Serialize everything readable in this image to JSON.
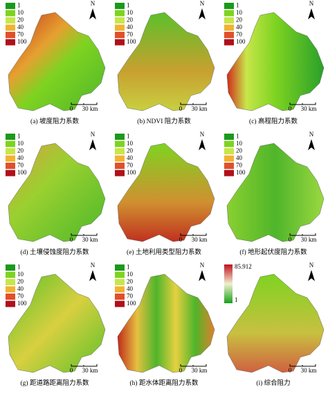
{
  "panels": [
    {
      "caption": "(a) 坡度阻力系数",
      "legend": [
        {
          "label": "1",
          "color": "#1a9a1a"
        },
        {
          "label": "10",
          "color": "#7ed321"
        },
        {
          "label": "20",
          "color": "#c8e64a"
        },
        {
          "label": "40",
          "color": "#f2b233"
        },
        {
          "label": "70",
          "color": "#e0502a"
        },
        {
          "label": "100",
          "color": "#b0101a"
        }
      ],
      "north": "N",
      "scale_start": "0",
      "scale_end": "30 km"
    },
    {
      "caption": "(b) NDVI 阻力系数",
      "legend": [
        {
          "label": "1",
          "color": "#1a9a1a"
        },
        {
          "label": "10",
          "color": "#7ed321"
        },
        {
          "label": "20",
          "color": "#c8e64a"
        },
        {
          "label": "40",
          "color": "#f2b233"
        },
        {
          "label": "70",
          "color": "#e0502a"
        },
        {
          "label": "100",
          "color": "#b0101a"
        }
      ],
      "north": "N",
      "scale_start": "0",
      "scale_end": "30 km"
    },
    {
      "caption": "(c) 高程阻力系数",
      "legend": [
        {
          "label": "1",
          "color": "#1a9a1a"
        },
        {
          "label": "10",
          "color": "#7ed321"
        },
        {
          "label": "20",
          "color": "#c8e64a"
        },
        {
          "label": "40",
          "color": "#f2b233"
        },
        {
          "label": "70",
          "color": "#e0502a"
        },
        {
          "label": "100",
          "color": "#b0101a"
        }
      ],
      "north": "N",
      "scale_start": "0",
      "scale_end": "30 km"
    },
    {
      "caption": "(d) 土壤侵蚀度阻力系数",
      "legend": [
        {
          "label": "1",
          "color": "#1a9a1a"
        },
        {
          "label": "10",
          "color": "#7ed321"
        },
        {
          "label": "20",
          "color": "#c8e64a"
        },
        {
          "label": "40",
          "color": "#f2b233"
        },
        {
          "label": "70",
          "color": "#e0502a"
        },
        {
          "label": "100",
          "color": "#b0101a"
        }
      ],
      "north": "N",
      "scale_start": "0",
      "scale_end": "30 km"
    },
    {
      "caption": "(e) 土地利用类型阻力系数",
      "legend": [
        {
          "label": "1",
          "color": "#1a9a1a"
        },
        {
          "label": "10",
          "color": "#7ed321"
        },
        {
          "label": "20",
          "color": "#c8e64a"
        },
        {
          "label": "40",
          "color": "#f2b233"
        },
        {
          "label": "70",
          "color": "#e0502a"
        },
        {
          "label": "100",
          "color": "#b0101a"
        }
      ],
      "north": "N",
      "scale_start": "0",
      "scale_end": "30 km"
    },
    {
      "caption": "(f) 地形起伏度阻力系数",
      "legend": [
        {
          "label": "1",
          "color": "#1a9a1a"
        },
        {
          "label": "10",
          "color": "#7ed321"
        },
        {
          "label": "20",
          "color": "#c8e64a"
        },
        {
          "label": "40",
          "color": "#f2b233"
        },
        {
          "label": "70",
          "color": "#e0502a"
        },
        {
          "label": "100",
          "color": "#b0101a"
        }
      ],
      "north": "N",
      "scale_start": "0",
      "scale_end": "30 km"
    },
    {
      "caption": "(g) 距道路距离阻力系数",
      "legend": [
        {
          "label": "1",
          "color": "#1a9a1a"
        },
        {
          "label": "10",
          "color": "#7ed321"
        },
        {
          "label": "20",
          "color": "#c8e64a"
        },
        {
          "label": "40",
          "color": "#f2b233"
        },
        {
          "label": "70",
          "color": "#e0502a"
        },
        {
          "label": "100",
          "color": "#b0101a"
        }
      ],
      "north": "N",
      "scale_start": "0",
      "scale_end": "30 km"
    },
    {
      "caption": "(h) 距水体距离阻力系数",
      "legend": [
        {
          "label": "1",
          "color": "#1a9a1a"
        },
        {
          "label": "10",
          "color": "#7ed321"
        },
        {
          "label": "20",
          "color": "#c8e64a"
        },
        {
          "label": "40",
          "color": "#f2b233"
        },
        {
          "label": "70",
          "color": "#e0502a"
        },
        {
          "label": "100",
          "color": "#b0101a"
        }
      ],
      "north": "N",
      "scale_start": "0",
      "scale_end": "30 km"
    },
    {
      "caption": "(i) 综合阻力",
      "legend_max": "85.912",
      "legend_min": "1",
      "north": "N",
      "scale_start": "0",
      "scale_end": "30 km"
    }
  ]
}
